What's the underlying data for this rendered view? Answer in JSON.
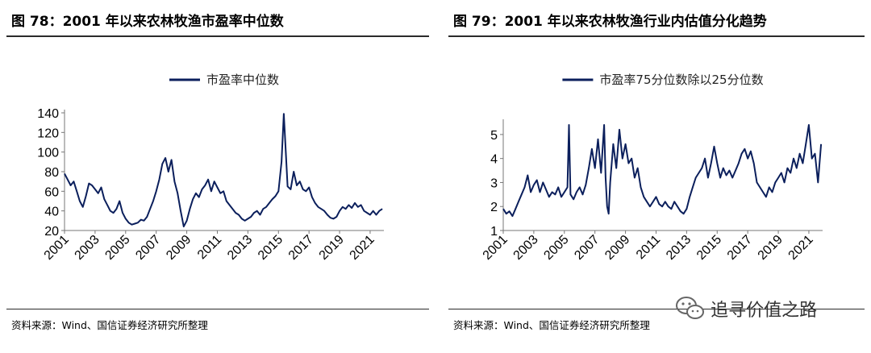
{
  "left": {
    "title": "图 78：2001 年以来农林牧渔市盈率中位数",
    "source": "资料来源：Wind、国信证券经济研究所整理",
    "chart_data": {
      "type": "line",
      "series": [
        {
          "name": "市盈率中位数",
          "color": "#0b1f5c",
          "points": [
            [
              2001.0,
              78
            ],
            [
              2001.2,
              72
            ],
            [
              2001.4,
              66
            ],
            [
              2001.6,
              70
            ],
            [
              2001.8,
              60
            ],
            [
              2002.0,
              50
            ],
            [
              2002.2,
              44
            ],
            [
              2002.4,
              55
            ],
            [
              2002.6,
              68
            ],
            [
              2002.8,
              66
            ],
            [
              2003.0,
              62
            ],
            [
              2003.2,
              58
            ],
            [
              2003.4,
              64
            ],
            [
              2003.6,
              52
            ],
            [
              2003.8,
              46
            ],
            [
              2004.0,
              40
            ],
            [
              2004.2,
              38
            ],
            [
              2004.4,
              42
            ],
            [
              2004.6,
              50
            ],
            [
              2004.8,
              38
            ],
            [
              2005.0,
              32
            ],
            [
              2005.2,
              28
            ],
            [
              2005.4,
              26
            ],
            [
              2005.6,
              27
            ],
            [
              2005.8,
              28
            ],
            [
              2006.0,
              31
            ],
            [
              2006.2,
              30
            ],
            [
              2006.4,
              34
            ],
            [
              2006.6,
              42
            ],
            [
              2006.8,
              50
            ],
            [
              2007.0,
              60
            ],
            [
              2007.2,
              72
            ],
            [
              2007.4,
              88
            ],
            [
              2007.6,
              94
            ],
            [
              2007.8,
              80
            ],
            [
              2008.0,
              92
            ],
            [
              2008.2,
              70
            ],
            [
              2008.4,
              58
            ],
            [
              2008.6,
              40
            ],
            [
              2008.8,
              24
            ],
            [
              2009.0,
              30
            ],
            [
              2009.2,
              42
            ],
            [
              2009.4,
              52
            ],
            [
              2009.6,
              58
            ],
            [
              2009.8,
              54
            ],
            [
              2010.0,
              62
            ],
            [
              2010.2,
              66
            ],
            [
              2010.4,
              72
            ],
            [
              2010.6,
              60
            ],
            [
              2010.8,
              70
            ],
            [
              2011.0,
              64
            ],
            [
              2011.2,
              58
            ],
            [
              2011.4,
              60
            ],
            [
              2011.6,
              50
            ],
            [
              2011.8,
              46
            ],
            [
              2012.0,
              42
            ],
            [
              2012.2,
              38
            ],
            [
              2012.4,
              36
            ],
            [
              2012.6,
              32
            ],
            [
              2012.8,
              30
            ],
            [
              2013.0,
              32
            ],
            [
              2013.2,
              34
            ],
            [
              2013.4,
              38
            ],
            [
              2013.6,
              40
            ],
            [
              2013.8,
              36
            ],
            [
              2014.0,
              42
            ],
            [
              2014.2,
              44
            ],
            [
              2014.4,
              48
            ],
            [
              2014.6,
              52
            ],
            [
              2014.8,
              55
            ],
            [
              2015.0,
              60
            ],
            [
              2015.2,
              90
            ],
            [
              2015.35,
              139
            ],
            [
              2015.5,
              95
            ],
            [
              2015.6,
              65
            ],
            [
              2015.8,
              62
            ],
            [
              2016.0,
              80
            ],
            [
              2016.2,
              66
            ],
            [
              2016.4,
              70
            ],
            [
              2016.6,
              62
            ],
            [
              2016.8,
              60
            ],
            [
              2017.0,
              64
            ],
            [
              2017.2,
              54
            ],
            [
              2017.4,
              48
            ],
            [
              2017.6,
              44
            ],
            [
              2017.8,
              42
            ],
            [
              2018.0,
              40
            ],
            [
              2018.2,
              36
            ],
            [
              2018.4,
              33
            ],
            [
              2018.6,
              32
            ],
            [
              2018.8,
              34
            ],
            [
              2019.0,
              40
            ],
            [
              2019.2,
              44
            ],
            [
              2019.4,
              42
            ],
            [
              2019.6,
              46
            ],
            [
              2019.8,
              43
            ],
            [
              2020.0,
              48
            ],
            [
              2020.2,
              44
            ],
            [
              2020.4,
              46
            ],
            [
              2020.6,
              40
            ],
            [
              2020.8,
              38
            ],
            [
              2021.0,
              36
            ],
            [
              2021.2,
              40
            ],
            [
              2021.4,
              36
            ],
            [
              2021.6,
              40
            ],
            [
              2021.8,
              42
            ]
          ]
        }
      ],
      "xlim": [
        2001,
        2021.9
      ],
      "ylim": [
        20,
        140
      ],
      "yticks": [
        20,
        40,
        60,
        80,
        100,
        120,
        140
      ],
      "xticks": [
        2001,
        2003,
        2005,
        2007,
        2009,
        2011,
        2013,
        2015,
        2017,
        2019,
        2021
      ],
      "legend": "top-center",
      "grid": false
    }
  },
  "right": {
    "title": "图 79：2001 年以来农林牧渔行业内估值分化趋势",
    "source": "资料来源：Wind、国信证券经济研究所整理",
    "chart_data": {
      "type": "line",
      "series": [
        {
          "name": "市盈率75分位数除以25分位数",
          "color": "#0b1f5c",
          "points": [
            [
              2001.0,
              1.9
            ],
            [
              2001.2,
              1.7
            ],
            [
              2001.4,
              1.8
            ],
            [
              2001.6,
              1.6
            ],
            [
              2001.8,
              1.9
            ],
            [
              2002.0,
              2.2
            ],
            [
              2002.2,
              2.5
            ],
            [
              2002.4,
              2.8
            ],
            [
              2002.6,
              3.3
            ],
            [
              2002.8,
              2.6
            ],
            [
              2003.0,
              2.9
            ],
            [
              2003.2,
              3.1
            ],
            [
              2003.4,
              2.6
            ],
            [
              2003.6,
              3.0
            ],
            [
              2003.8,
              2.7
            ],
            [
              2004.0,
              2.4
            ],
            [
              2004.2,
              2.6
            ],
            [
              2004.4,
              2.5
            ],
            [
              2004.6,
              2.8
            ],
            [
              2004.8,
              2.4
            ],
            [
              2005.0,
              2.6
            ],
            [
              2005.2,
              2.8
            ],
            [
              2005.3,
              5.4
            ],
            [
              2005.4,
              2.5
            ],
            [
              2005.6,
              2.3
            ],
            [
              2005.8,
              2.6
            ],
            [
              2006.0,
              2.8
            ],
            [
              2006.2,
              2.5
            ],
            [
              2006.4,
              2.9
            ],
            [
              2006.6,
              3.6
            ],
            [
              2006.8,
              4.4
            ],
            [
              2007.0,
              3.6
            ],
            [
              2007.2,
              4.8
            ],
            [
              2007.4,
              3.4
            ],
            [
              2007.6,
              5.4
            ],
            [
              2007.7,
              3.2
            ],
            [
              2007.8,
              2.0
            ],
            [
              2007.9,
              1.7
            ],
            [
              2008.0,
              3.0
            ],
            [
              2008.2,
              4.6
            ],
            [
              2008.4,
              3.6
            ],
            [
              2008.6,
              5.2
            ],
            [
              2008.8,
              4.0
            ],
            [
              2009.0,
              4.6
            ],
            [
              2009.2,
              3.8
            ],
            [
              2009.4,
              4.0
            ],
            [
              2009.6,
              3.2
            ],
            [
              2009.8,
              3.6
            ],
            [
              2010.0,
              2.8
            ],
            [
              2010.2,
              2.4
            ],
            [
              2010.4,
              2.2
            ],
            [
              2010.6,
              2.0
            ],
            [
              2010.8,
              2.2
            ],
            [
              2011.0,
              2.4
            ],
            [
              2011.2,
              2.1
            ],
            [
              2011.4,
              2.0
            ],
            [
              2011.6,
              2.2
            ],
            [
              2011.8,
              2.0
            ],
            [
              2012.0,
              1.9
            ],
            [
              2012.2,
              2.2
            ],
            [
              2012.4,
              2.0
            ],
            [
              2012.6,
              1.8
            ],
            [
              2012.8,
              1.7
            ],
            [
              2013.0,
              1.9
            ],
            [
              2013.2,
              2.4
            ],
            [
              2013.4,
              2.8
            ],
            [
              2013.6,
              3.2
            ],
            [
              2013.8,
              3.4
            ],
            [
              2014.0,
              3.6
            ],
            [
              2014.2,
              4.0
            ],
            [
              2014.4,
              3.2
            ],
            [
              2014.6,
              3.8
            ],
            [
              2014.8,
              4.5
            ],
            [
              2015.0,
              3.8
            ],
            [
              2015.2,
              3.2
            ],
            [
              2015.4,
              3.6
            ],
            [
              2015.6,
              3.3
            ],
            [
              2015.8,
              3.5
            ],
            [
              2016.0,
              3.2
            ],
            [
              2016.2,
              3.5
            ],
            [
              2016.4,
              3.8
            ],
            [
              2016.6,
              4.2
            ],
            [
              2016.8,
              4.4
            ],
            [
              2017.0,
              4.0
            ],
            [
              2017.2,
              4.3
            ],
            [
              2017.4,
              3.8
            ],
            [
              2017.6,
              3.0
            ],
            [
              2017.8,
              2.8
            ],
            [
              2018.0,
              2.6
            ],
            [
              2018.2,
              2.4
            ],
            [
              2018.4,
              2.8
            ],
            [
              2018.6,
              2.6
            ],
            [
              2018.8,
              3.0
            ],
            [
              2019.0,
              3.2
            ],
            [
              2019.2,
              3.4
            ],
            [
              2019.4,
              3.0
            ],
            [
              2019.6,
              3.6
            ],
            [
              2019.8,
              3.4
            ],
            [
              2020.0,
              4.0
            ],
            [
              2020.2,
              3.6
            ],
            [
              2020.4,
              4.2
            ],
            [
              2020.6,
              3.8
            ],
            [
              2020.8,
              4.6
            ],
            [
              2021.0,
              5.4
            ],
            [
              2021.2,
              4.0
            ],
            [
              2021.4,
              4.2
            ],
            [
              2021.6,
              3.0
            ],
            [
              2021.8,
              4.6
            ]
          ]
        }
      ],
      "xlim": [
        2001,
        2021.9
      ],
      "ylim": [
        1,
        5.5
      ],
      "yticks": [
        1,
        2,
        3,
        4,
        5
      ],
      "xticks": [
        2001,
        2003,
        2005,
        2007,
        2009,
        2011,
        2013,
        2015,
        2017,
        2019,
        2021
      ],
      "legend": "top-center",
      "grid": false
    }
  },
  "watermark": {
    "text": "追寻价值之路",
    "icon": "wechat-icon"
  }
}
